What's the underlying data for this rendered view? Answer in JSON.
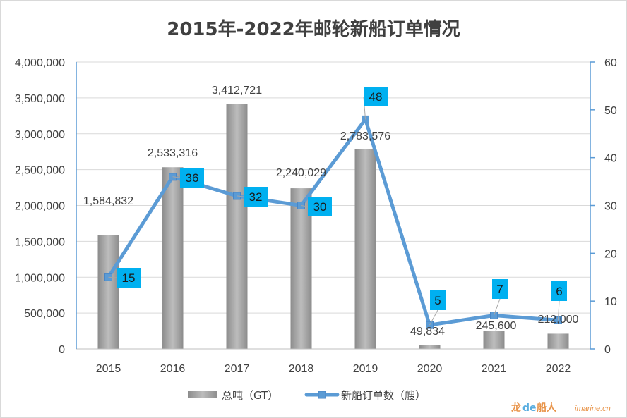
{
  "chart_data": {
    "type": "bar+line",
    "title": "2015年-2022年邮轮新船订单情况",
    "categories": [
      "2015",
      "2016",
      "2017",
      "2018",
      "2019",
      "2020",
      "2021",
      "2022"
    ],
    "series": [
      {
        "name": "总吨（GT）",
        "type": "bar",
        "axis": "left",
        "values": [
          1584832,
          2533316,
          3412721,
          2240029,
          2783576,
          49834,
          245600,
          212000
        ],
        "labels": [
          "1,584,832",
          "2,533,316",
          "3,412,721",
          "2,240,029",
          "2,783,576",
          "49,834",
          "245,600",
          "212,000"
        ],
        "color": "#a6a6a6"
      },
      {
        "name": "新船订单数（艘）",
        "type": "line",
        "axis": "right",
        "values": [
          15,
          36,
          32,
          30,
          48,
          5,
          7,
          6
        ],
        "labels": [
          "15",
          "36",
          "32",
          "30",
          "48",
          "5",
          "7",
          "6"
        ],
        "color": "#5b9bd5",
        "label_fill": "#00b0f0"
      }
    ],
    "y_left": {
      "range": [
        0,
        4000000
      ],
      "ticks": [
        "0",
        "500,000",
        "1,000,000",
        "1,500,000",
        "2,000,000",
        "2,500,000",
        "3,000,000",
        "3,500,000",
        "4,000,000"
      ]
    },
    "y_right": {
      "range": [
        0,
        60
      ],
      "ticks": [
        "0",
        "10",
        "20",
        "30",
        "40",
        "50",
        "60"
      ]
    },
    "legend_position": "bottom",
    "grid": true
  },
  "watermark": {
    "part1": "龙",
    "part2": "de",
    "part3": "船人",
    "part4": "imarine.cn"
  }
}
